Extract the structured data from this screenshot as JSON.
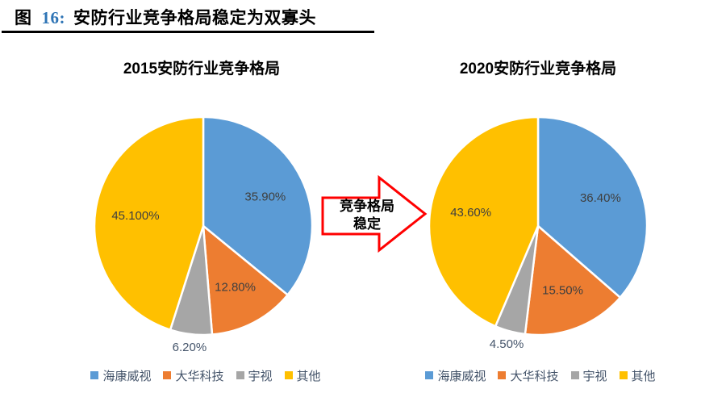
{
  "figure": {
    "prefix": "图",
    "number": "16:",
    "title": "安防行业竞争格局稳定为双寡头"
  },
  "arrow": {
    "line1": "竞争格局",
    "line2": "稳定"
  },
  "colors": {
    "blue": "#5B9BD5",
    "orange": "#ED7D31",
    "gray": "#A6A6A6",
    "yellow": "#FFC000",
    "arrow_border": "#FF0000",
    "figure_number_blue": "#2E74B5",
    "label_inside": "#3F3F3F",
    "label_outside": "#44546A",
    "legend_text": "#44546A"
  },
  "chart_data": [
    {
      "type": "pie",
      "title": "2015安防行业竞争格局",
      "legend_position": "bottom",
      "start_angle_deg": 0,
      "direction": "clockwise",
      "slices": [
        {
          "name": "海康威视",
          "value": 35.9,
          "label": "35.90%",
          "color_key": "blue",
          "label_inside": true
        },
        {
          "name": "大华科技",
          "value": 12.8,
          "label": "12.80%",
          "color_key": "orange",
          "label_inside": true
        },
        {
          "name": "宇视",
          "value": 6.2,
          "label": "6.20%",
          "color_key": "gray",
          "label_inside": false
        },
        {
          "name": "其他",
          "value": 45.1,
          "label": "45.100%",
          "color_key": "yellow",
          "label_inside": true
        }
      ]
    },
    {
      "type": "pie",
      "title": "2020安防行业竞争格局",
      "legend_position": "bottom",
      "start_angle_deg": 0,
      "direction": "clockwise",
      "slices": [
        {
          "name": "海康威视",
          "value": 36.4,
          "label": "36.40%",
          "color_key": "blue",
          "label_inside": true
        },
        {
          "name": "大华科技",
          "value": 15.5,
          "label": "15.50%",
          "color_key": "orange",
          "label_inside": true
        },
        {
          "name": "宇视",
          "value": 4.5,
          "label": "4.50%",
          "color_key": "gray",
          "label_inside": false
        },
        {
          "name": "其他",
          "value": 43.6,
          "label": "43.60%",
          "color_key": "yellow",
          "label_inside": true
        }
      ]
    }
  ]
}
